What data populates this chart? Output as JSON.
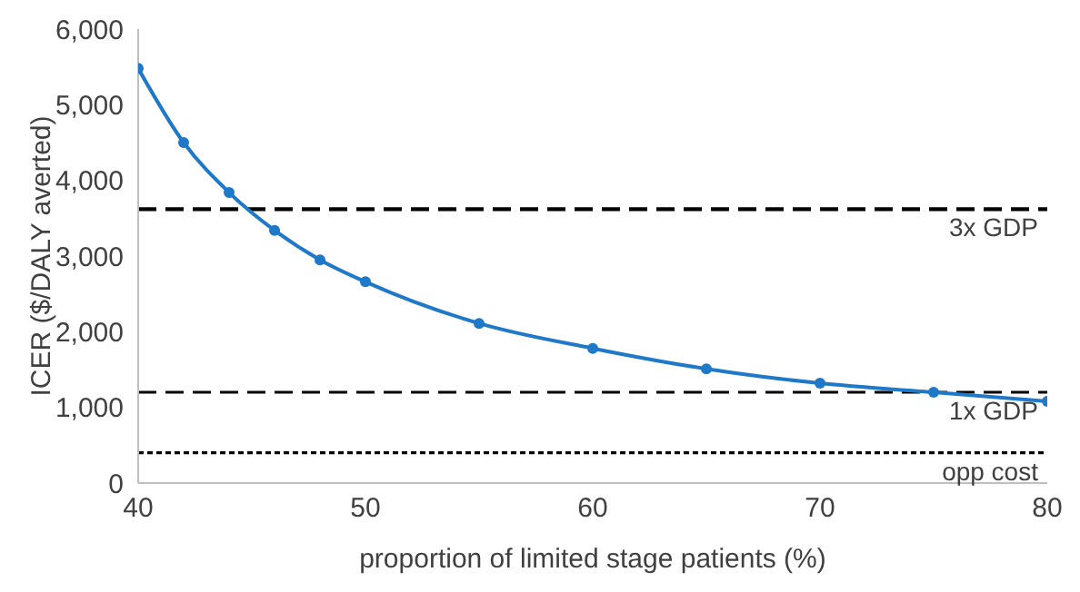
{
  "chart_data": {
    "type": "line",
    "xlabel": "proportion of limited stage patients (%)",
    "ylabel": "ICER ($/DALY averted)",
    "series": [
      {
        "color": "#1f78c8",
        "x": [
          40,
          42,
          44,
          46,
          48,
          50,
          55,
          60,
          65,
          70,
          75,
          80
        ],
        "values": [
          5480,
          4500,
          3840,
          3340,
          2950,
          2660,
          2110,
          1780,
          1510,
          1320,
          1200,
          1080
        ]
      }
    ],
    "xlim": [
      40,
      80
    ],
    "xticks": [
      40,
      50,
      60,
      70,
      80
    ],
    "ylim": [
      0,
      6000
    ],
    "yticks": [
      {
        "value": 0,
        "label": "0"
      },
      {
        "value": 1000,
        "label": "1,000"
      },
      {
        "value": 2000,
        "label": "2,000"
      },
      {
        "value": 3000,
        "label": "3,000"
      },
      {
        "value": 4000,
        "label": "4,000"
      },
      {
        "value": 5000,
        "label": "5,000"
      },
      {
        "value": 6000,
        "label": "6,000"
      }
    ],
    "ref_lines": [
      {
        "axis": "y",
        "value": 3620,
        "label": "3x GDP",
        "color": "#000000",
        "line_style": "dashed"
      },
      {
        "axis": "y",
        "value": 1200,
        "label": "1x GDP",
        "color": "#000000",
        "line_style": "dashed"
      },
      {
        "axis": "y",
        "value": 400,
        "label": "opp cost",
        "color": "#000000",
        "line_style": "dotted"
      }
    ],
    "marker": "circle",
    "line_style": "solid",
    "grid": false,
    "legend": false
  }
}
